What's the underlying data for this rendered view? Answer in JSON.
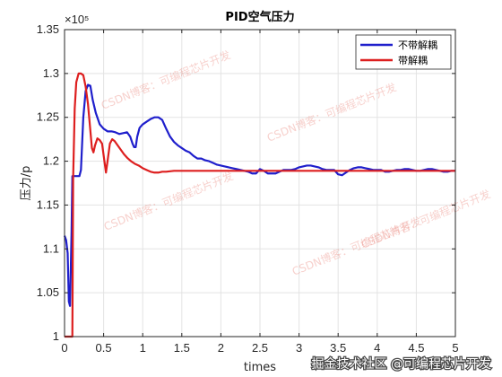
{
  "chart_data": {
    "type": "line",
    "title": "PID空气压力",
    "xlabel": "times",
    "ylabel": "压力/p",
    "exponent_label": "×10⁵",
    "xlim": [
      0,
      5
    ],
    "ylim": [
      1.0,
      1.35
    ],
    "x_ticks": [
      0,
      0.5,
      1,
      1.5,
      2,
      2.5,
      3,
      3.5,
      4,
      4.5,
      5
    ],
    "x_tick_labels": [
      "0",
      "0.5",
      "1",
      "1.5",
      "2",
      "2.5",
      "3",
      "3.5",
      "4",
      "4.5",
      "5"
    ],
    "y_ticks": [
      1.0,
      1.05,
      1.1,
      1.15,
      1.2,
      1.25,
      1.3,
      1.35
    ],
    "y_tick_labels": [
      "1",
      "1.05",
      "1.1",
      "1.15",
      "1.2",
      "1.25",
      "1.3",
      "1.35"
    ],
    "grid": true,
    "legend_position": "top-right",
    "series": [
      {
        "name": "不带解耦",
        "color": "#1f1fcc",
        "points": [
          [
            0,
            1.115
          ],
          [
            0.02,
            1.11
          ],
          [
            0.04,
            1.095
          ],
          [
            0.055,
            1.04
          ],
          [
            0.07,
            1.035
          ],
          [
            0.09,
            1.12
          ],
          [
            0.1,
            1.183
          ],
          [
            0.15,
            1.183
          ],
          [
            0.19,
            1.183
          ],
          [
            0.21,
            1.19
          ],
          [
            0.24,
            1.25
          ],
          [
            0.27,
            1.28
          ],
          [
            0.3,
            1.287
          ],
          [
            0.33,
            1.286
          ],
          [
            0.36,
            1.27
          ],
          [
            0.4,
            1.255
          ],
          [
            0.45,
            1.242
          ],
          [
            0.5,
            1.237
          ],
          [
            0.55,
            1.234
          ],
          [
            0.6,
            1.234
          ],
          [
            0.65,
            1.233
          ],
          [
            0.7,
            1.231
          ],
          [
            0.75,
            1.232
          ],
          [
            0.8,
            1.233
          ],
          [
            0.84,
            1.228
          ],
          [
            0.87,
            1.22
          ],
          [
            0.89,
            1.216
          ],
          [
            0.91,
            1.216
          ],
          [
            0.93,
            1.228
          ],
          [
            0.96,
            1.238
          ],
          [
            1.0,
            1.242
          ],
          [
            1.05,
            1.245
          ],
          [
            1.1,
            1.248
          ],
          [
            1.15,
            1.25
          ],
          [
            1.2,
            1.25
          ],
          [
            1.25,
            1.247
          ],
          [
            1.3,
            1.237
          ],
          [
            1.35,
            1.228
          ],
          [
            1.4,
            1.222
          ],
          [
            1.45,
            1.218
          ],
          [
            1.5,
            1.215
          ],
          [
            1.55,
            1.212
          ],
          [
            1.6,
            1.21
          ],
          [
            1.65,
            1.206
          ],
          [
            1.7,
            1.203
          ],
          [
            1.75,
            1.203
          ],
          [
            1.8,
            1.201
          ],
          [
            1.85,
            1.2
          ],
          [
            1.9,
            1.198
          ],
          [
            1.95,
            1.196
          ],
          [
            2.0,
            1.195
          ],
          [
            2.05,
            1.194
          ],
          [
            2.1,
            1.193
          ],
          [
            2.15,
            1.192
          ],
          [
            2.2,
            1.191
          ],
          [
            2.25,
            1.19
          ],
          [
            2.3,
            1.189
          ],
          [
            2.35,
            1.188
          ],
          [
            2.4,
            1.186
          ],
          [
            2.45,
            1.186
          ],
          [
            2.5,
            1.191
          ],
          [
            2.55,
            1.189
          ],
          [
            2.6,
            1.186
          ],
          [
            2.65,
            1.186
          ],
          [
            2.7,
            1.186
          ],
          [
            2.75,
            1.188
          ],
          [
            2.8,
            1.19
          ],
          [
            2.85,
            1.19
          ],
          [
            2.9,
            1.19
          ],
          [
            2.95,
            1.191
          ],
          [
            3.0,
            1.193
          ],
          [
            3.05,
            1.194
          ],
          [
            3.1,
            1.195
          ],
          [
            3.15,
            1.195
          ],
          [
            3.2,
            1.194
          ],
          [
            3.25,
            1.193
          ],
          [
            3.3,
            1.191
          ],
          [
            3.35,
            1.19
          ],
          [
            3.4,
            1.19
          ],
          [
            3.45,
            1.19
          ],
          [
            3.5,
            1.185
          ],
          [
            3.55,
            1.184
          ],
          [
            3.6,
            1.187
          ],
          [
            3.65,
            1.19
          ],
          [
            3.7,
            1.192
          ],
          [
            3.75,
            1.193
          ],
          [
            3.8,
            1.193
          ],
          [
            3.85,
            1.192
          ],
          [
            3.9,
            1.191
          ],
          [
            3.95,
            1.19
          ],
          [
            4.0,
            1.19
          ],
          [
            4.05,
            1.19
          ],
          [
            4.1,
            1.188
          ],
          [
            4.15,
            1.188
          ],
          [
            4.2,
            1.189
          ],
          [
            4.25,
            1.19
          ],
          [
            4.3,
            1.19
          ],
          [
            4.35,
            1.191
          ],
          [
            4.4,
            1.191
          ],
          [
            4.45,
            1.19
          ],
          [
            4.5,
            1.189
          ],
          [
            4.55,
            1.189
          ],
          [
            4.6,
            1.19
          ],
          [
            4.65,
            1.191
          ],
          [
            4.7,
            1.191
          ],
          [
            4.75,
            1.19
          ],
          [
            4.8,
            1.189
          ],
          [
            4.85,
            1.188
          ],
          [
            4.9,
            1.188
          ],
          [
            4.95,
            1.189
          ],
          [
            5.0,
            1.189
          ]
        ]
      },
      {
        "name": "带解耦",
        "color": "#dd1f1f",
        "points": [
          [
            0,
            1.0
          ],
          [
            0.05,
            1.0
          ],
          [
            0.08,
            1.0
          ],
          [
            0.1,
            1.0
          ],
          [
            0.11,
            1.18
          ],
          [
            0.13,
            1.26
          ],
          [
            0.15,
            1.29
          ],
          [
            0.18,
            1.3
          ],
          [
            0.21,
            1.3
          ],
          [
            0.24,
            1.298
          ],
          [
            0.27,
            1.285
          ],
          [
            0.3,
            1.265
          ],
          [
            0.33,
            1.235
          ],
          [
            0.35,
            1.215
          ],
          [
            0.37,
            1.21
          ],
          [
            0.39,
            1.218
          ],
          [
            0.42,
            1.226
          ],
          [
            0.45,
            1.224
          ],
          [
            0.48,
            1.22
          ],
          [
            0.51,
            1.2
          ],
          [
            0.53,
            1.187
          ],
          [
            0.55,
            1.2
          ],
          [
            0.58,
            1.22
          ],
          [
            0.61,
            1.225
          ],
          [
            0.64,
            1.223
          ],
          [
            0.68,
            1.218
          ],
          [
            0.72,
            1.213
          ],
          [
            0.76,
            1.208
          ],
          [
            0.8,
            1.204
          ],
          [
            0.85,
            1.2
          ],
          [
            0.9,
            1.197
          ],
          [
            0.95,
            1.195
          ],
          [
            1.0,
            1.192
          ],
          [
            1.05,
            1.19
          ],
          [
            1.1,
            1.188
          ],
          [
            1.15,
            1.187
          ],
          [
            1.2,
            1.187
          ],
          [
            1.25,
            1.188
          ],
          [
            1.3,
            1.188
          ],
          [
            1.4,
            1.189
          ],
          [
            1.5,
            1.189
          ],
          [
            1.6,
            1.189
          ],
          [
            1.8,
            1.189
          ],
          [
            2.0,
            1.189
          ],
          [
            2.5,
            1.189
          ],
          [
            3.0,
            1.189
          ],
          [
            3.5,
            1.189
          ],
          [
            4.0,
            1.189
          ],
          [
            4.5,
            1.189
          ],
          [
            5.0,
            1.189
          ]
        ]
      }
    ]
  },
  "watermarks": [
    "CSDN博客：可编程芯片开发",
    "CSDN博客：可编程芯片开发",
    "CSDN博客：可编程芯片开发",
    "CSDN博客：可编程芯片开发",
    "CSDN博客：可编程芯片开发"
  ],
  "footer_text": "掘金技术社区 @可编程芯片开发"
}
